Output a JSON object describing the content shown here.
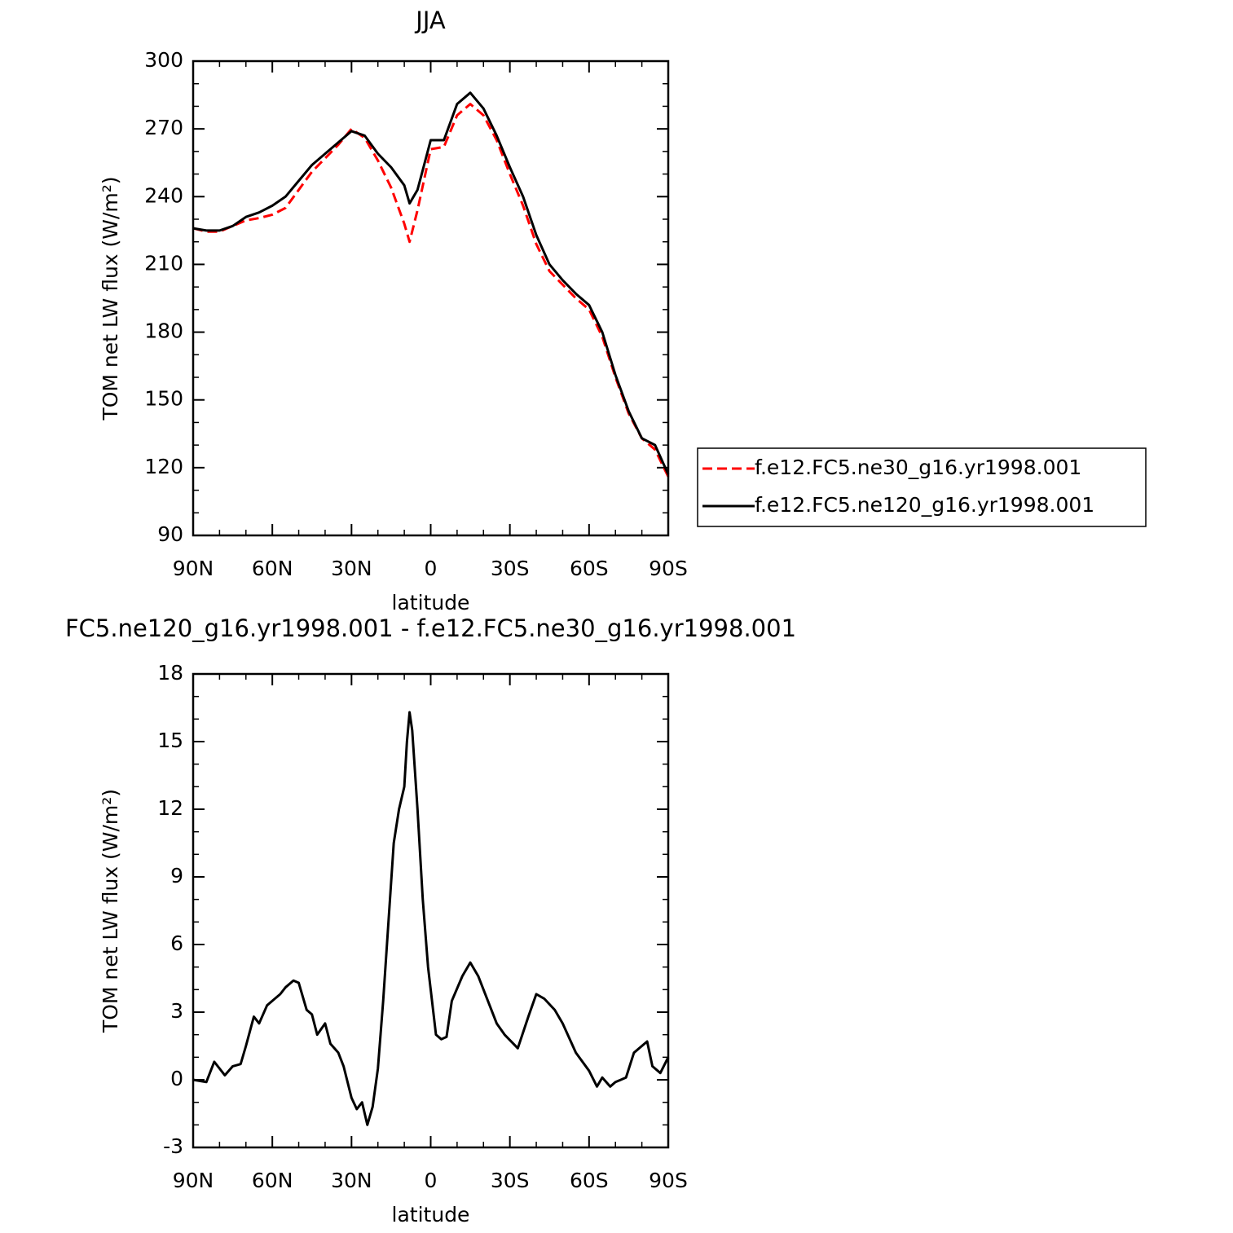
{
  "chart_data": [
    {
      "type": "line",
      "title": "JJA",
      "xlabel": "latitude",
      "ylabel": "TOM net LW flux (W/m²)",
      "x": [
        90,
        85,
        80,
        75,
        70,
        65,
        60,
        55,
        50,
        45,
        40,
        35,
        30,
        25,
        20,
        15,
        10,
        8,
        5,
        0,
        -5,
        -10,
        -15,
        -20,
        -25,
        -30,
        -35,
        -40,
        -45,
        -50,
        -55,
        -60,
        -65,
        -70,
        -75,
        -80,
        -85,
        -90
      ],
      "series": [
        {
          "name": "f.e12.FC5.ne30_g16.yr1998.001",
          "color": "#ff0000",
          "linestyle": "dashed",
          "values": [
            226,
            224.5,
            224.5,
            227,
            229.5,
            230.5,
            232,
            235,
            243,
            251,
            257,
            263,
            270,
            266,
            256,
            244,
            228,
            220,
            234,
            261,
            262,
            276,
            281,
            276,
            265,
            250,
            236,
            219,
            207,
            201,
            195,
            190,
            178,
            160,
            144,
            133,
            128,
            116
          ]
        },
        {
          "name": "f.e12.FC5.ne120_g16.yr1998.001",
          "color": "#000000",
          "linestyle": "solid",
          "values": [
            226,
            225,
            225,
            227,
            231,
            233,
            236,
            240,
            247,
            254,
            259,
            264,
            269,
            267,
            259,
            253,
            245,
            237,
            243,
            265,
            265,
            281,
            286,
            279,
            267,
            253,
            240,
            223,
            210,
            203,
            197,
            192,
            180,
            161,
            145,
            133,
            130,
            117
          ]
        }
      ],
      "xlim": [
        90,
        -90
      ],
      "xticks": [
        {
          "value": 90,
          "label": "90N"
        },
        {
          "value": 60,
          "label": "60N"
        },
        {
          "value": 30,
          "label": "30N"
        },
        0,
        {
          "value": -30,
          "label": "30S"
        },
        {
          "value": -60,
          "label": "60S"
        },
        {
          "value": -90,
          "label": "90S"
        }
      ],
      "ylim": [
        90,
        300
      ],
      "yticks": [
        90,
        120,
        150,
        180,
        210,
        240,
        270,
        300
      ],
      "legend": "right",
      "grid": false
    },
    {
      "type": "line",
      "title": "FC5.ne120_g16.yr1998.001 - f.e12.FC5.ne30_g16.yr1998.001",
      "xlabel": "latitude",
      "ylabel": "TOM net LW flux (W/m²)",
      "x": [
        90,
        85,
        82,
        78,
        75,
        72,
        70,
        67,
        65,
        62,
        60,
        57,
        55,
        52,
        50,
        47,
        45,
        43,
        40,
        38,
        35,
        33,
        30,
        28,
        26,
        25,
        24,
        22,
        20,
        18,
        16,
        14,
        12,
        10,
        9,
        8,
        7,
        5,
        3,
        1,
        0,
        -2,
        -4,
        -6,
        -8,
        -12,
        -15,
        -18,
        -20,
        -25,
        -28,
        -33,
        -37,
        -40,
        -43,
        -47,
        -50,
        -55,
        -60,
        -63,
        -65,
        -68,
        -70,
        -74,
        -77,
        -80,
        -82,
        -84,
        -87,
        -90
      ],
      "series": [
        {
          "color": "#000000",
          "linestyle": "solid",
          "values": [
            0,
            -0.1,
            0.8,
            0.2,
            0.6,
            0.7,
            1.5,
            2.8,
            2.5,
            3.3,
            3.5,
            3.8,
            4.1,
            4.4,
            4.3,
            3.1,
            2.9,
            2.0,
            2.5,
            1.6,
            1.2,
            0.6,
            -0.8,
            -1.3,
            -1.0,
            -1.5,
            -2.0,
            -1.2,
            0.5,
            3.5,
            7.0,
            10.5,
            12.0,
            13.0,
            15.0,
            16.3,
            15.5,
            12.0,
            8.0,
            5.0,
            4.0,
            2.0,
            1.8,
            1.9,
            3.5,
            4.6,
            5.2,
            4.6,
            4.0,
            2.5,
            2.0,
            1.4,
            2.8,
            3.8,
            3.6,
            3.1,
            2.5,
            1.2,
            0.4,
            -0.3,
            0.1,
            -0.3,
            -0.1,
            0.1,
            1.2,
            1.5,
            1.7,
            0.6,
            0.3,
            1.0
          ]
        }
      ],
      "xlim": [
        90,
        -90
      ],
      "xticks": [
        {
          "value": 90,
          "label": "90N"
        },
        {
          "value": 60,
          "label": "60N"
        },
        {
          "value": 30,
          "label": "30N"
        },
        0,
        {
          "value": -30,
          "label": "30S"
        },
        {
          "value": -60,
          "label": "60S"
        },
        {
          "value": -90,
          "label": "90S"
        }
      ],
      "ylim": [
        -3,
        18
      ],
      "yticks": [
        -3,
        0,
        3,
        6,
        9,
        12,
        15,
        18
      ],
      "grid": false
    }
  ]
}
